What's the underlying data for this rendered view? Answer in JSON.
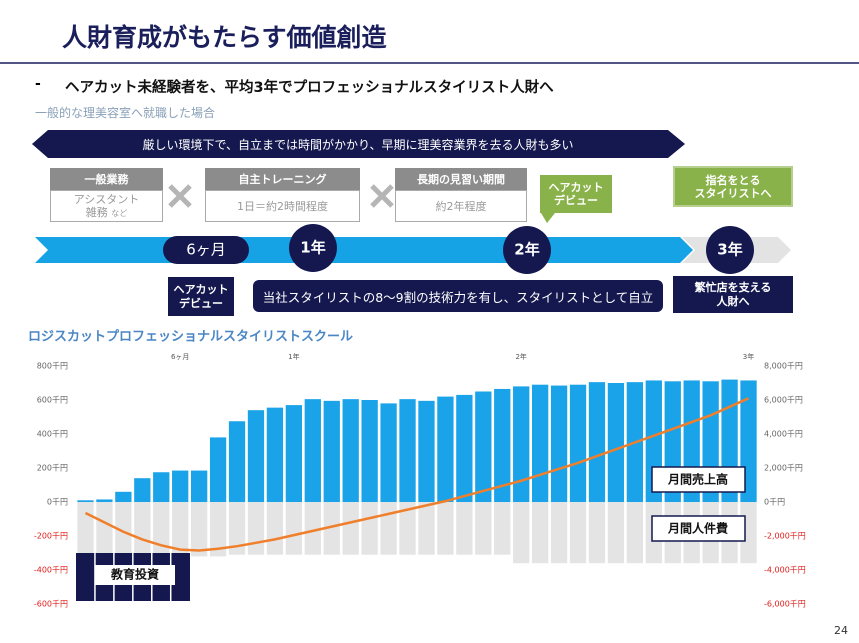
{
  "header": {
    "title": "人財育成がもたらす価値創造",
    "bullet": "-",
    "subtitle": "ヘアカット未経験者を、平均3年でプロフェッショナルスタイリスト人財へ",
    "page": "24"
  },
  "general": {
    "note": "一般的な理美容室へ就職した場合",
    "banner": "厳しい環境下で、自立までは時間がかかり、早期に理美容業界を去る人財も多い",
    "steps": [
      {
        "head": "一般業務",
        "body": [
          "アシスタント",
          "雑務"
        ],
        "small": "など"
      },
      {
        "head": "自主トレーニング",
        "body": [
          "1日＝約2時間程度"
        ]
      },
      {
        "head": "長期の見習い期間",
        "body": [
          "約2年程度"
        ]
      }
    ],
    "debut": [
      "ヘアカット",
      "デビュー"
    ],
    "goal": [
      "指名をとる",
      "スタイリストへ"
    ]
  },
  "timeline": {
    "marks": [
      "6ヶ月",
      "1年",
      "2年",
      "3年"
    ],
    "debut": [
      "ヘアカット",
      "デビュー"
    ],
    "skill": "当社スタイリストの8～9割の技術力を有し、スタイリストとして自立",
    "goal": [
      "繁忙店を支える",
      "人財へ"
    ]
  },
  "chart_data": {
    "type": "bar",
    "title": "ロジスカットプロフェッショナルスタイリストスクール",
    "categories": [
      null,
      null,
      null,
      null,
      null,
      "6ヶ月",
      null,
      null,
      null,
      null,
      null,
      "1年",
      null,
      null,
      null,
      null,
      null,
      null,
      null,
      null,
      null,
      null,
      null,
      "2年",
      null,
      null,
      null,
      null,
      null,
      null,
      null,
      null,
      null,
      null,
      null,
      "3年"
    ],
    "series": [
      {
        "name": "月間売上高",
        "color": "#1aa3e8",
        "values": [
          10,
          15,
          60,
          140,
          175,
          185,
          185,
          380,
          475,
          540,
          555,
          570,
          605,
          595,
          605,
          600,
          580,
          605,
          595,
          620,
          630,
          650,
          665,
          680,
          690,
          685,
          690,
          705,
          700,
          705,
          715,
          710,
          715,
          710,
          720,
          715
        ]
      },
      {
        "name": "月間人件費",
        "color": "#e4e4e4",
        "values": [
          -320,
          -320,
          -320,
          -320,
          -320,
          -320,
          -320,
          -320,
          -310,
          -310,
          -310,
          -310,
          -310,
          -310,
          -310,
          -310,
          -310,
          -310,
          -310,
          -310,
          -310,
          -310,
          -310,
          -360,
          -360,
          -360,
          -360,
          -360,
          -360,
          -360,
          -360,
          -360,
          -360,
          -360,
          -360,
          -360
        ]
      },
      {
        "type": "line",
        "axis": "y2",
        "color": "#f07f2c",
        "values": [
          -650,
          -1200,
          -1750,
          -2200,
          -2550,
          -2800,
          -2850,
          -2750,
          -2600,
          -2400,
          -2200,
          -1950,
          -1700,
          -1450,
          -1200,
          -950,
          -700,
          -450,
          -200,
          50,
          350,
          650,
          950,
          1250,
          1600,
          1950,
          2300,
          2700,
          3100,
          3500,
          3900,
          4300,
          4700,
          5100,
          5600,
          6100
        ]
      }
    ],
    "annotation": "教育投資",
    "ylim": [
      -600,
      800
    ],
    "yticks": [
      {
        "value": 800,
        "label": "800千円"
      },
      {
        "value": 600,
        "label": "600千円"
      },
      {
        "value": 400,
        "label": "400千円"
      },
      {
        "value": 200,
        "label": "200千円"
      },
      {
        "value": 0,
        "label": "0千円"
      },
      {
        "value": -200,
        "label": "-200千円"
      },
      {
        "value": -400,
        "label": "-400千円"
      },
      {
        "value": -600,
        "label": "-600千円"
      }
    ],
    "y2lim": [
      -6000,
      8000
    ],
    "y2ticks": [
      {
        "value": 8000,
        "label": "8,000千円"
      },
      {
        "value": 6000,
        "label": "6,000千円"
      },
      {
        "value": 4000,
        "label": "4,000千円"
      },
      {
        "value": 2000,
        "label": "2,000千円"
      },
      {
        "value": 0,
        "label": "0千円"
      },
      {
        "value": -2000,
        "label": "-2,000千円"
      },
      {
        "value": -4000,
        "label": "-4,000千円"
      },
      {
        "value": -6000,
        "label": "-6,000千円"
      }
    ],
    "negative_color": "#e0201c"
  }
}
